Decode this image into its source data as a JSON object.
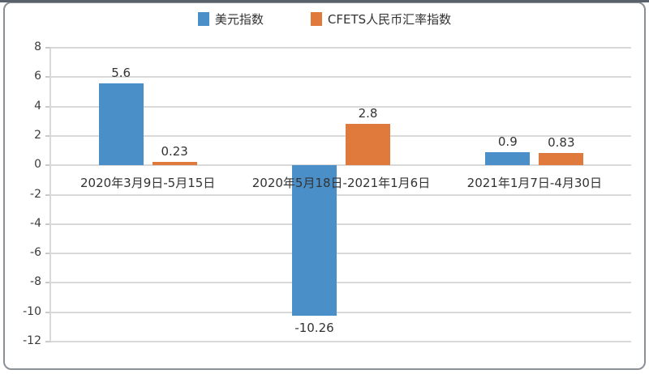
{
  "chart_data": {
    "type": "bar",
    "title": "",
    "categories": [
      "2020年3月9日-5月15日",
      "2020年5月18日-2021年1月6日",
      "2021年1月7日-4月30日"
    ],
    "series": [
      {
        "name": "美元指数",
        "color": "#4b8fc8",
        "values": [
          5.6,
          -10.26,
          0.9
        ],
        "labels": [
          "5.6",
          "-10.26",
          "0.9"
        ]
      },
      {
        "name": "CFETS人民币汇率指数",
        "color": "#e0793c",
        "values": [
          0.23,
          2.8,
          0.83
        ],
        "labels": [
          "0.23",
          "2.8",
          "0.83"
        ]
      }
    ],
    "xlabel": "",
    "ylabel": "",
    "ylim": [
      -12,
      8
    ],
    "yticks": [
      8,
      6,
      4,
      2,
      0,
      -2,
      -4,
      -6,
      -8,
      -10,
      -12
    ],
    "grid": true,
    "legend_position": "top"
  }
}
